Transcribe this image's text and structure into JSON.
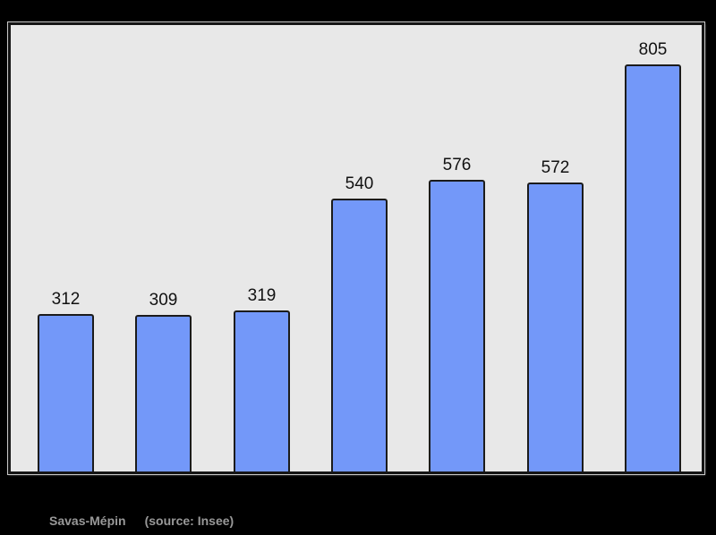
{
  "window": {
    "outer_background": "#000000"
  },
  "chart_data": {
    "type": "bar",
    "title": "",
    "xlabel": "",
    "ylabel": "",
    "values": [
      312,
      309,
      319,
      540,
      576,
      572,
      805
    ],
    "data_labels": [
      "312",
      "309",
      "319",
      "540",
      "576",
      "572",
      "805"
    ],
    "categories": [
      "",
      "",
      "",
      "",
      "",
      "",
      ""
    ],
    "x_tick_labels_visible": false,
    "y_axis_visible": false,
    "grid": false,
    "legend": false,
    "data_labels_shown": true,
    "bar_fill": "#7398f9",
    "bar_border": "#1b1b1b",
    "plot_background": "#e8e8e8",
    "frame_border": "#151515",
    "label_color": "#111111"
  },
  "caption": {
    "name": "Savas-Mépin",
    "source": "(source: Insee)",
    "color": "#999999"
  }
}
